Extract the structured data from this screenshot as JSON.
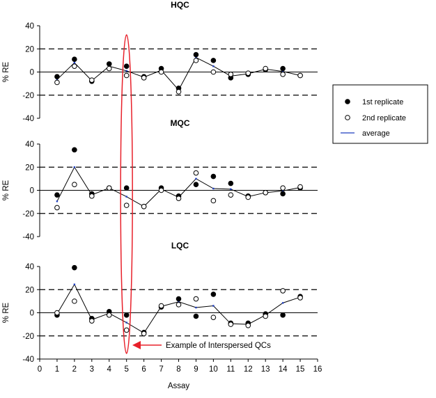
{
  "colors": {
    "filled_marker": "#000000",
    "open_marker_fill": "#ffffff",
    "average_line": "#000000",
    "average_marker": "#1f3fbf",
    "highlight": "#e8202a",
    "reference_lines": "#000000"
  },
  "chart_data": [
    {
      "type": "scatter",
      "title": "HQC",
      "ylabel": "% RE",
      "xlabel": "",
      "ylim": [
        -40,
        40
      ],
      "yticks": [
        "40",
        "20",
        "0",
        "-20",
        "-40"
      ],
      "reference_lines": [
        20,
        -20
      ],
      "x": [
        1,
        2,
        3,
        4,
        5,
        6,
        7,
        8,
        9,
        10,
        11,
        12,
        13,
        14,
        15
      ],
      "series": [
        {
          "name": "1st replicate",
          "marker": "filled-circle",
          "values": [
            -4,
            11,
            -8,
            7,
            5,
            -4,
            3,
            -14,
            15,
            10,
            -5,
            -2,
            2,
            3,
            -3
          ]
        },
        {
          "name": "2nd replicate",
          "marker": "open-circle",
          "values": [
            -9,
            5,
            -7,
            3,
            -3,
            -5,
            0,
            -17,
            10,
            0,
            -2,
            -1,
            3,
            -2,
            -3
          ]
        },
        {
          "name": "average",
          "marker": "line",
          "values": [
            -6.5,
            8,
            -7.5,
            5,
            1,
            -4.5,
            1.5,
            -15.5,
            12.5,
            5,
            -3.5,
            -1.5,
            2.5,
            0.5,
            -3
          ]
        }
      ]
    },
    {
      "type": "scatter",
      "title": "MQC",
      "ylabel": "% RE",
      "xlabel": "",
      "ylim": [
        -40,
        40
      ],
      "yticks": [
        "40",
        "20",
        "0",
        "-20",
        "-40"
      ],
      "reference_lines": [
        20,
        -20
      ],
      "x": [
        1,
        2,
        3,
        4,
        5,
        6,
        7,
        8,
        9,
        10,
        11,
        12,
        13,
        14,
        15
      ],
      "series": [
        {
          "name": "1st replicate",
          "marker": "filled-circle",
          "values": [
            -4,
            35,
            -3,
            2,
            2,
            -14,
            2,
            -5,
            5,
            12,
            6,
            -5,
            -2,
            -3,
            2
          ]
        },
        {
          "name": "2nd replicate",
          "marker": "open-circle",
          "values": [
            -15,
            5,
            -5,
            2,
            -13,
            -14,
            0,
            -7,
            15,
            -9,
            -4,
            -6,
            -2,
            2,
            3
          ]
        },
        {
          "name": "average",
          "marker": "line",
          "values": [
            -9.5,
            20,
            -4,
            2,
            -5.5,
            -14,
            1,
            -6,
            10,
            1.5,
            1,
            -5.5,
            -2,
            -0.5,
            2.5
          ]
        }
      ]
    },
    {
      "type": "scatter",
      "title": "LQC",
      "ylabel": "% RE",
      "xlabel": "Assay",
      "ylim": [
        -40,
        40
      ],
      "xlim": [
        0,
        16
      ],
      "yticks": [
        "40",
        "20",
        "0",
        "-20",
        "-40"
      ],
      "xticks": [
        "0",
        "1",
        "2",
        "3",
        "4",
        "5",
        "6",
        "7",
        "8",
        "9",
        "10",
        "11",
        "12",
        "13",
        "14",
        "15",
        "16"
      ],
      "reference_lines": [
        20,
        -20
      ],
      "x": [
        1,
        2,
        3,
        4,
        5,
        6,
        7,
        8,
        9,
        10,
        11,
        12,
        13,
        14,
        15
      ],
      "series": [
        {
          "name": "1st replicate",
          "marker": "filled-circle",
          "values": [
            -2,
            39,
            -5,
            1,
            -2,
            -17,
            5,
            12,
            -3,
            16,
            -9,
            -9,
            -1,
            -2,
            14
          ]
        },
        {
          "name": "2nd replicate",
          "marker": "open-circle",
          "values": [
            0,
            10,
            -7,
            -2,
            -15,
            -18,
            6,
            7,
            12,
            -4,
            -10,
            -11,
            -3,
            19,
            13
          ]
        },
        {
          "name": "average",
          "marker": "line",
          "values": [
            -1,
            24.5,
            -6,
            -0.5,
            -8.5,
            -17.5,
            5.5,
            9.5,
            4.5,
            6,
            -9.5,
            -10,
            -2,
            8.5,
            13.5
          ]
        }
      ]
    }
  ],
  "legend": {
    "placement": "right",
    "entries": [
      {
        "label": "1st replicate",
        "marker": "filled-circle"
      },
      {
        "label": "2nd replicate",
        "marker": "open-circle"
      },
      {
        "label": "average",
        "marker": "line"
      }
    ]
  },
  "annotation": {
    "text": "Example of Interspersed QCs",
    "highlight_x": 5
  }
}
